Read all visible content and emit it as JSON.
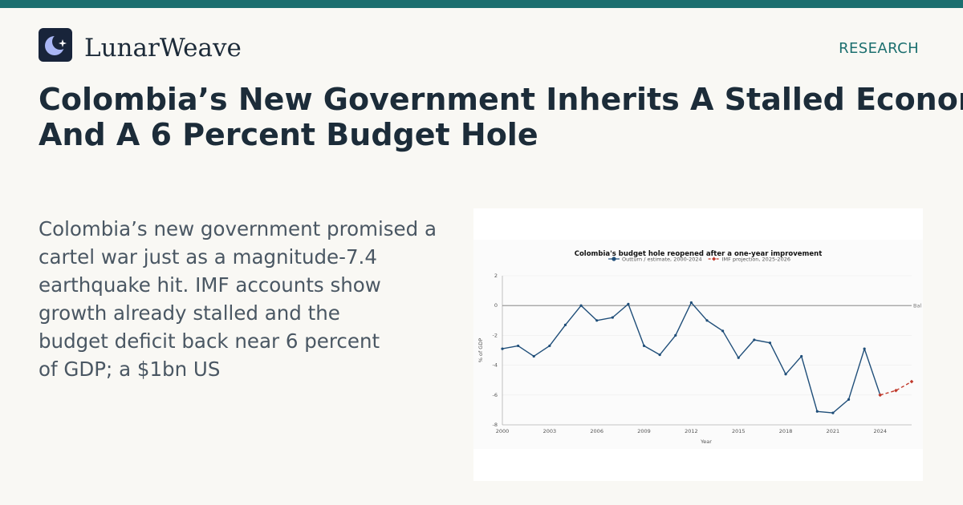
{
  "brand": {
    "name": "LunarWeave",
    "logo_icon": "crescent-moon-star-icon",
    "accent": "#1c6f6f"
  },
  "header": {
    "section_label": "RESEARCH"
  },
  "article": {
    "headline_lines": [
      "Colombia’s New Government Inherits A Stalled Economy",
      "And A 6 Percent Budget Hole"
    ],
    "summary_lines": [
      "Colombia’s new government promised a",
      "cartel war just as a magnitude-7.4",
      "earthquake hit. IMF accounts show",
      "growth already stalled and the",
      "budget deficit back near 6 percent",
      "of GDP; a $1bn US"
    ]
  },
  "chart_data": {
    "type": "line",
    "title": "Colombia's budget hole reopened after a one-year improvement",
    "xlabel": "Year",
    "ylabel": "% of GDP",
    "xlim": [
      2000,
      2026
    ],
    "ylim": [
      -8,
      2
    ],
    "x_ticks": [
      2000,
      2003,
      2006,
      2009,
      2012,
      2015,
      2018,
      2021,
      2024
    ],
    "y_ticks": [
      -8,
      -6,
      -4,
      -2,
      0,
      2
    ],
    "grid": true,
    "legend_position": "top-center",
    "reference_line": {
      "y": 0,
      "label": "Bal"
    },
    "series": [
      {
        "name": "Outturn / estimate, 2000-2024",
        "color": "#1f4e79",
        "style": "solid",
        "x": [
          2000,
          2001,
          2002,
          2003,
          2004,
          2005,
          2006,
          2007,
          2008,
          2009,
          2010,
          2011,
          2012,
          2013,
          2014,
          2015,
          2016,
          2017,
          2018,
          2019,
          2020,
          2021,
          2022,
          2023,
          2024
        ],
        "y": [
          -2.9,
          -2.7,
          -3.4,
          -2.7,
          -1.3,
          0.0,
          -1.0,
          -0.8,
          0.1,
          -2.7,
          -3.3,
          -2.0,
          0.2,
          -1.0,
          -1.7,
          -3.5,
          -2.3,
          -2.5,
          -4.6,
          -3.4,
          -7.1,
          -7.2,
          -6.3,
          -2.9,
          -6.0
        ]
      },
      {
        "name": "IMF projection, 2025-2026",
        "color": "#c0392b",
        "style": "dashed",
        "x": [
          2024,
          2025,
          2026
        ],
        "y": [
          -6.0,
          -5.7,
          -5.1
        ]
      }
    ]
  }
}
